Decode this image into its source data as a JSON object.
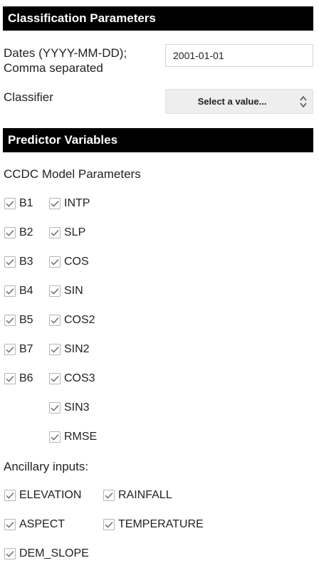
{
  "classification": {
    "header": "Classification Parameters",
    "dates_label_line1": "Dates (YYYY-MM-DD);",
    "dates_label_line2": "Comma separated",
    "dates_value": "2001-01-01",
    "classifier_label": "Classifier",
    "classifier_placeholder": "Select a value..."
  },
  "predictors": {
    "header": "Predictor Variables",
    "ccdc_label": "CCDC Model Parameters",
    "bands": [
      {
        "label": "B1",
        "checked": true
      },
      {
        "label": "B2",
        "checked": true
      },
      {
        "label": "B3",
        "checked": true
      },
      {
        "label": "B4",
        "checked": true
      },
      {
        "label": "B5",
        "checked": true
      },
      {
        "label": "B7",
        "checked": true
      },
      {
        "label": "B6",
        "checked": true
      }
    ],
    "coefficients": [
      {
        "label": "INTP",
        "checked": true
      },
      {
        "label": "SLP",
        "checked": true
      },
      {
        "label": "COS",
        "checked": true
      },
      {
        "label": "SIN",
        "checked": true
      },
      {
        "label": "COS2",
        "checked": true
      },
      {
        "label": "SIN2",
        "checked": true
      },
      {
        "label": "COS3",
        "checked": true
      },
      {
        "label": "SIN3",
        "checked": true
      },
      {
        "label": "RMSE",
        "checked": true
      }
    ],
    "ancillary_label": "Ancillary inputs:",
    "ancillary": [
      {
        "label": "ELEVATION",
        "checked": true
      },
      {
        "label": "RAINFALL",
        "checked": true
      },
      {
        "label": "ASPECT",
        "checked": true
      },
      {
        "label": "TEMPERATURE",
        "checked": true
      },
      {
        "label": "DEM_SLOPE",
        "checked": true
      }
    ]
  }
}
